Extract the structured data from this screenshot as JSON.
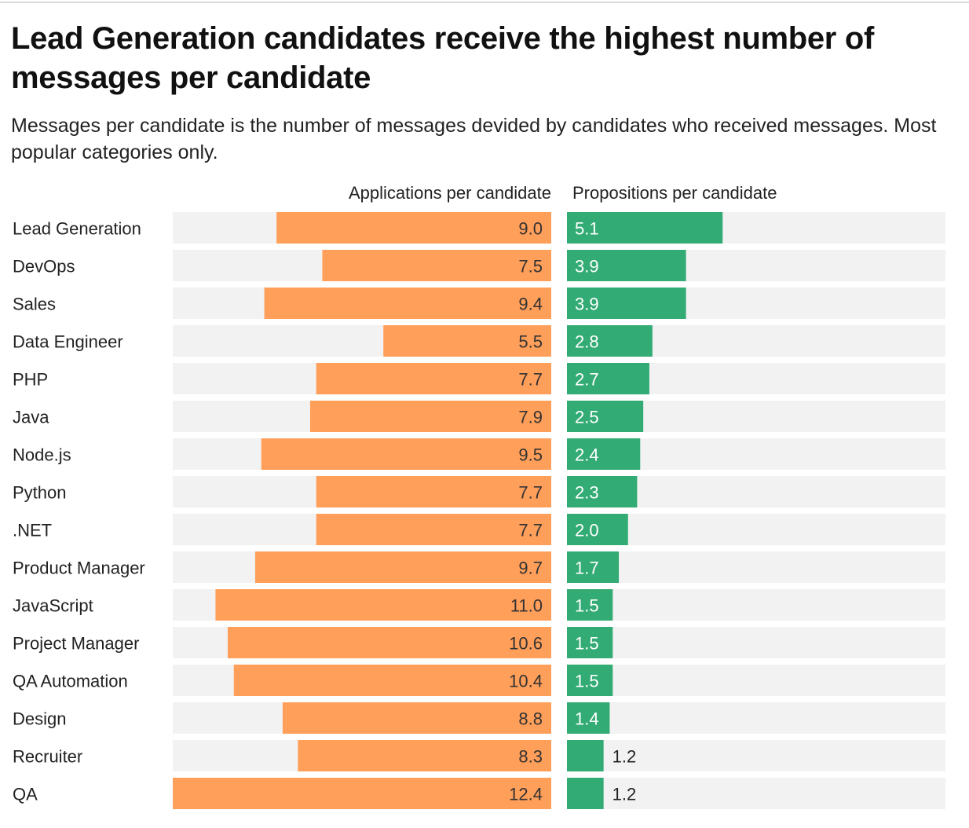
{
  "title": "Lead Generation candidates receive the highest number of messages per candidate",
  "subtitle": "Messages per candidate is the number of messages devided by candidates who received messages. Most popular categories only.",
  "colors": {
    "applications": "#FF9F5A",
    "propositions": "#33AB74",
    "track": "#F2F2F2",
    "label": "#222222",
    "value_inside_left": "#333333",
    "value_inside_right": "#ffffff"
  },
  "chart_data": {
    "type": "bar",
    "layout": "split-horizontal",
    "categories": [
      "Lead Generation",
      "DevOps",
      "Sales",
      "Data Engineer",
      "PHP",
      "Java",
      "Node.js",
      "Python",
      ".NET",
      "Product Manager",
      "JavaScript",
      "Project Manager",
      "QA Automation",
      "Design",
      "Recruiter",
      "QA"
    ],
    "series": [
      {
        "name": "Applications per candidate",
        "values": [
          9.0,
          7.5,
          9.4,
          5.5,
          7.7,
          7.9,
          9.5,
          7.7,
          7.7,
          9.7,
          11.0,
          10.6,
          10.4,
          8.8,
          8.3,
          12.4
        ],
        "labels": [
          "9.0",
          "7.5",
          "9.4",
          "5.5",
          "7.7",
          "7.9",
          "9.5",
          "7.7",
          "7.7",
          "9.7",
          "11.0",
          "10.6",
          "10.4",
          "8.8",
          "8.3",
          "12.4"
        ],
        "direction": "leftward",
        "xlim": [
          0,
          12.4
        ]
      },
      {
        "name": "Propositions per candidate",
        "values": [
          5.1,
          3.9,
          3.9,
          2.8,
          2.7,
          2.5,
          2.4,
          2.3,
          2.0,
          1.7,
          1.5,
          1.5,
          1.5,
          1.4,
          1.2,
          1.2
        ],
        "labels": [
          "5.1",
          "3.9",
          "3.9",
          "2.8",
          "2.7",
          "2.5",
          "2.4",
          "2.3",
          "2.0",
          "1.7",
          "1.5",
          "1.5",
          "1.5",
          "1.4",
          "1.2",
          "1.2"
        ],
        "direction": "rightward",
        "xlim": [
          0,
          12.4
        ]
      }
    ],
    "grid": false,
    "legend": "column headers above each panel"
  }
}
